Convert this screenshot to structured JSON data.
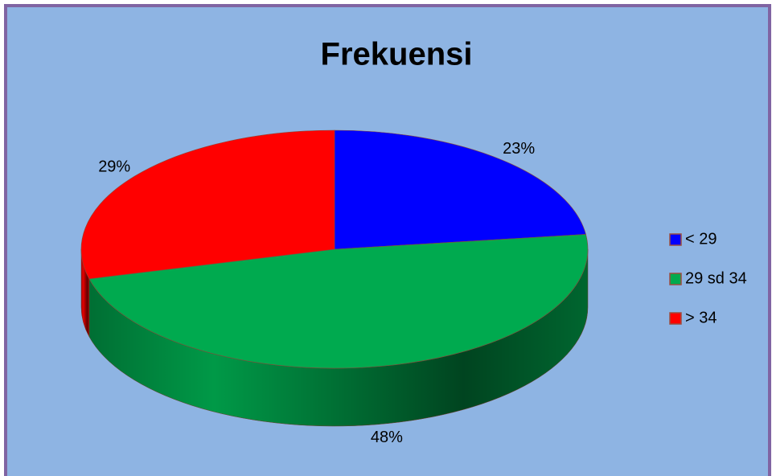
{
  "chart_data": {
    "type": "pie",
    "title": "Frekuensi",
    "categories": [
      "< 29",
      "29 sd 34",
      "> 34"
    ],
    "values": [
      23,
      48,
      29
    ],
    "value_labels": [
      "23%",
      "48%",
      "29%"
    ],
    "colors": [
      "#0000ff",
      "#00aa4f",
      "#ff0000"
    ],
    "legend": "right"
  }
}
